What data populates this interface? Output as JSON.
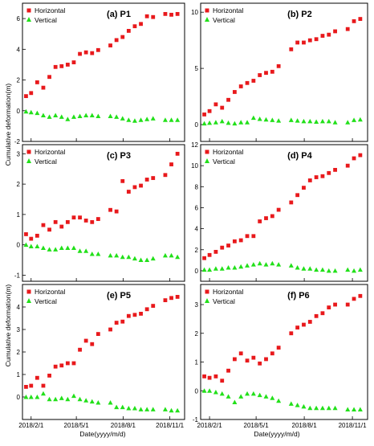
{
  "figure": {
    "ylabel": "Cumulative deformation(m)",
    "xlabel": "Date(yyyy/m/d)",
    "legend": [
      "Horizontal",
      "Vertical"
    ],
    "colors": {
      "horizontal": "#e8191c",
      "vertical": "#22e01a",
      "axis": "#000000"
    },
    "x_ticks": [
      "2018/2/1",
      "2018/5/1",
      "2018/8/1",
      "2018/11/1"
    ]
  },
  "chart_data": [
    {
      "type": "scatter",
      "title": "(a) P1",
      "ylim": [
        -2,
        7
      ],
      "yticks": [
        -2,
        0,
        2,
        4,
        6
      ],
      "xlim": [
        "2018-01-15",
        "2018-11-30"
      ],
      "x": [
        "2018-01-22",
        "2018-02-01",
        "2018-02-13",
        "2018-02-25",
        "2018-03-09",
        "2018-03-21",
        "2018-04-02",
        "2018-04-14",
        "2018-04-26",
        "2018-05-08",
        "2018-05-20",
        "2018-06-01",
        "2018-06-13",
        "2018-07-07",
        "2018-07-19",
        "2018-07-31",
        "2018-08-12",
        "2018-08-24",
        "2018-09-05",
        "2018-09-17",
        "2018-09-29",
        "2018-10-23",
        "2018-11-04",
        "2018-11-16"
      ],
      "series": [
        {
          "name": "Horizontal",
          "values": [
            0.95,
            1.15,
            1.85,
            1.5,
            2.2,
            2.85,
            2.9,
            3.0,
            3.15,
            3.7,
            3.8,
            3.75,
            3.95,
            4.25,
            4.6,
            4.8,
            5.2,
            5.5,
            5.65,
            6.15,
            6.1,
            6.3,
            6.25,
            6.3
          ]
        },
        {
          "name": "Vertical",
          "values": [
            -0.05,
            -0.1,
            -0.15,
            -0.3,
            -0.4,
            -0.3,
            -0.4,
            -0.55,
            -0.4,
            -0.35,
            -0.3,
            -0.3,
            -0.35,
            -0.35,
            -0.4,
            -0.5,
            -0.6,
            -0.65,
            -0.6,
            -0.55,
            -0.5,
            -0.6,
            -0.6,
            -0.6
          ]
        }
      ]
    },
    {
      "type": "scatter",
      "title": "(b) P2",
      "ylim": [
        -1.5,
        10.8
      ],
      "yticks": [
        0,
        5,
        10
      ],
      "xlim": [
        "2018-01-15",
        "2018-11-30"
      ],
      "x": [
        "2018-01-22",
        "2018-02-01",
        "2018-02-13",
        "2018-02-25",
        "2018-03-09",
        "2018-03-21",
        "2018-04-02",
        "2018-04-14",
        "2018-04-26",
        "2018-05-08",
        "2018-05-20",
        "2018-06-01",
        "2018-06-13",
        "2018-07-07",
        "2018-07-19",
        "2018-07-31",
        "2018-08-12",
        "2018-08-24",
        "2018-09-05",
        "2018-09-17",
        "2018-09-29",
        "2018-10-23",
        "2018-11-04",
        "2018-11-16"
      ],
      "series": [
        {
          "name": "Horizontal",
          "values": [
            0.9,
            1.2,
            1.8,
            1.5,
            2.2,
            2.9,
            3.4,
            3.7,
            3.9,
            4.4,
            4.6,
            4.7,
            5.2,
            6.7,
            7.3,
            7.3,
            7.5,
            7.6,
            7.9,
            8.0,
            8.3,
            8.5,
            9.2,
            9.4
          ]
        },
        {
          "name": "Vertical",
          "values": [
            0.1,
            0.15,
            0.2,
            0.3,
            0.15,
            0.1,
            0.2,
            0.2,
            0.6,
            0.5,
            0.45,
            0.4,
            0.35,
            0.4,
            0.35,
            0.3,
            0.3,
            0.25,
            0.3,
            0.3,
            0.2,
            0.2,
            0.4,
            0.45
          ]
        }
      ]
    },
    {
      "type": "scatter",
      "title": "(c) P3",
      "ylim": [
        -1.2,
        3.3
      ],
      "yticks": [
        -1,
        0,
        1,
        2,
        3
      ],
      "xlim": [
        "2018-01-15",
        "2018-11-30"
      ],
      "x": [
        "2018-01-22",
        "2018-02-01",
        "2018-02-13",
        "2018-02-25",
        "2018-03-09",
        "2018-03-21",
        "2018-04-02",
        "2018-04-14",
        "2018-04-26",
        "2018-05-08",
        "2018-05-20",
        "2018-06-01",
        "2018-06-13",
        "2018-07-07",
        "2018-07-19",
        "2018-07-31",
        "2018-08-12",
        "2018-08-24",
        "2018-09-05",
        "2018-09-17",
        "2018-09-29",
        "2018-10-23",
        "2018-11-04",
        "2018-11-16"
      ],
      "series": [
        {
          "name": "Horizontal",
          "values": [
            0.35,
            0.2,
            0.3,
            0.65,
            0.5,
            0.75,
            0.6,
            0.75,
            0.9,
            0.9,
            0.8,
            0.75,
            0.85,
            1.15,
            1.1,
            2.1,
            1.75,
            1.9,
            1.95,
            2.15,
            2.2,
            2.3,
            2.65,
            3.0
          ]
        },
        {
          "name": "Vertical",
          "values": [
            0.0,
            -0.05,
            -0.05,
            -0.1,
            -0.15,
            -0.15,
            -0.1,
            -0.1,
            -0.1,
            -0.2,
            -0.2,
            -0.3,
            -0.3,
            -0.35,
            -0.35,
            -0.4,
            -0.4,
            -0.45,
            -0.5,
            -0.5,
            -0.45,
            -0.35,
            -0.35,
            -0.4
          ]
        }
      ]
    },
    {
      "type": "scatter",
      "title": "(d) P4",
      "ylim": [
        -1.0,
        12
      ],
      "yticks": [
        0,
        2,
        4,
        6,
        8,
        10,
        12
      ],
      "xlim": [
        "2018-01-15",
        "2018-11-30"
      ],
      "x": [
        "2018-01-22",
        "2018-02-01",
        "2018-02-13",
        "2018-02-25",
        "2018-03-09",
        "2018-03-21",
        "2018-04-02",
        "2018-04-14",
        "2018-04-26",
        "2018-05-08",
        "2018-05-20",
        "2018-06-01",
        "2018-06-13",
        "2018-07-07",
        "2018-07-19",
        "2018-07-31",
        "2018-08-12",
        "2018-08-24",
        "2018-09-05",
        "2018-09-17",
        "2018-09-29",
        "2018-10-23",
        "2018-11-04",
        "2018-11-16"
      ],
      "series": [
        {
          "name": "Horizontal",
          "values": [
            1.2,
            1.5,
            1.8,
            2.2,
            2.4,
            2.8,
            2.9,
            3.3,
            3.3,
            4.7,
            5.0,
            5.2,
            5.8,
            6.5,
            7.2,
            7.9,
            8.6,
            8.9,
            9.0,
            9.3,
            9.6,
            10.0,
            10.7,
            11.0
          ]
        },
        {
          "name": "Vertical",
          "values": [
            0.1,
            0.1,
            0.2,
            0.2,
            0.3,
            0.3,
            0.4,
            0.5,
            0.6,
            0.7,
            0.6,
            0.7,
            0.6,
            0.5,
            0.3,
            0.2,
            0.2,
            0.1,
            0.1,
            0.0,
            0.0,
            0.1,
            0.0,
            0.1
          ]
        }
      ]
    },
    {
      "type": "scatter",
      "title": "(e) P5",
      "ylim": [
        -1.0,
        5.0
      ],
      "yticks": [
        0,
        1,
        2,
        3,
        4
      ],
      "xlim": [
        "2018-01-15",
        "2018-11-30"
      ],
      "x": [
        "2018-01-22",
        "2018-02-01",
        "2018-02-13",
        "2018-02-25",
        "2018-03-09",
        "2018-03-21",
        "2018-04-02",
        "2018-04-14",
        "2018-04-26",
        "2018-05-08",
        "2018-05-20",
        "2018-06-01",
        "2018-06-13",
        "2018-07-07",
        "2018-07-19",
        "2018-07-31",
        "2018-08-12",
        "2018-08-24",
        "2018-09-05",
        "2018-09-17",
        "2018-09-29",
        "2018-10-23",
        "2018-11-04",
        "2018-11-16"
      ],
      "series": [
        {
          "name": "Horizontal",
          "values": [
            0.45,
            0.5,
            0.85,
            0.5,
            0.95,
            1.35,
            1.4,
            1.5,
            1.5,
            2.1,
            2.5,
            2.35,
            2.8,
            3.0,
            3.3,
            3.35,
            3.6,
            3.65,
            3.7,
            3.9,
            4.05,
            4.3,
            4.4,
            4.45
          ]
        },
        {
          "name": "Vertical",
          "values": [
            0.0,
            0.0,
            0.0,
            0.15,
            -0.1,
            -0.1,
            -0.05,
            -0.1,
            0.05,
            -0.1,
            -0.15,
            -0.2,
            -0.25,
            -0.25,
            -0.45,
            -0.45,
            -0.5,
            -0.5,
            -0.55,
            -0.55,
            -0.55,
            -0.55,
            -0.6,
            -0.6
          ]
        }
      ]
    },
    {
      "type": "scatter",
      "title": "(f) P6",
      "ylim": [
        -1.0,
        3.7
      ],
      "yticks": [
        -1,
        0,
        1,
        2,
        3
      ],
      "xlim": [
        "2018-01-15",
        "2018-11-30"
      ],
      "x": [
        "2018-01-22",
        "2018-02-01",
        "2018-02-13",
        "2018-02-25",
        "2018-03-09",
        "2018-03-21",
        "2018-04-02",
        "2018-04-14",
        "2018-04-26",
        "2018-05-08",
        "2018-05-20",
        "2018-06-01",
        "2018-06-13",
        "2018-07-07",
        "2018-07-19",
        "2018-07-31",
        "2018-08-12",
        "2018-08-24",
        "2018-09-05",
        "2018-09-17",
        "2018-09-29",
        "2018-10-23",
        "2018-11-04",
        "2018-11-16"
      ],
      "series": [
        {
          "name": "Horizontal",
          "values": [
            0.5,
            0.45,
            0.5,
            0.35,
            0.7,
            1.1,
            1.3,
            1.05,
            1.15,
            0.95,
            1.1,
            1.3,
            1.5,
            2.0,
            2.2,
            2.3,
            2.4,
            2.6,
            2.7,
            2.9,
            3.0,
            3.0,
            3.2,
            3.3
          ]
        },
        {
          "name": "Vertical",
          "values": [
            0.0,
            0.0,
            -0.05,
            -0.1,
            -0.2,
            -0.4,
            -0.2,
            -0.1,
            -0.1,
            -0.15,
            -0.2,
            -0.25,
            -0.35,
            -0.45,
            -0.5,
            -0.55,
            -0.6,
            -0.6,
            -0.6,
            -0.6,
            -0.6,
            -0.65,
            -0.65,
            -0.65
          ]
        }
      ]
    }
  ]
}
